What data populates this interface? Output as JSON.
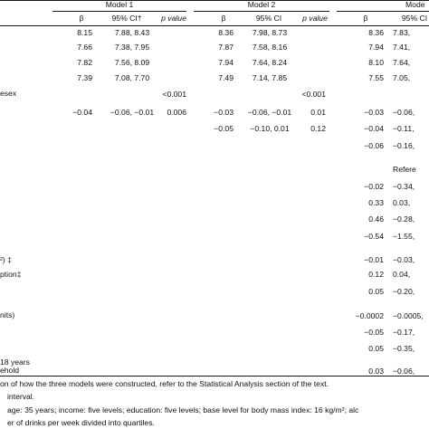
{
  "header": {
    "models": [
      "Model 1",
      "Model 2",
      "Mode"
    ],
    "beta": "β",
    "ci": "95% CI†",
    "ci2": "95% CI",
    "pval": "p value"
  },
  "rows": [
    {
      "label": "",
      "m1": [
        "8.15",
        "7.88, 8.43",
        ""
      ],
      "m2": [
        "8.36",
        "7.98, 8.73",
        ""
      ],
      "m3": [
        "8.36",
        "7.83,"
      ]
    },
    {
      "label": "",
      "m1": [
        "7.66",
        "7.38, 7.95",
        ""
      ],
      "m2": [
        "7.87",
        "7.58, 8.16",
        ""
      ],
      "m3": [
        "7.94",
        "7.41,"
      ]
    },
    {
      "label": "",
      "m1": [
        "7.82",
        "7.56, 8.09",
        ""
      ],
      "m2": [
        "7.94",
        "7.64, 8.24",
        ""
      ],
      "m3": [
        "8.10",
        "7.64,"
      ]
    },
    {
      "label": "",
      "m1": [
        "7.39",
        "7.08, 7.70",
        ""
      ],
      "m2": [
        "7.49",
        "7.14, 7.85",
        ""
      ],
      "m3": [
        "7.55",
        "7.05,"
      ]
    },
    {
      "label": "esex",
      "m1": [
        "",
        "",
        "<0.001"
      ],
      "m2": [
        "",
        "",
        "<0.001"
      ],
      "m3": [
        "",
        ""
      ]
    },
    {
      "label": "",
      "m1": [
        "−0.04",
        "−0.06, −0.01",
        "0.006"
      ],
      "m2": [
        "−0.03",
        "−0.06, −0.01",
        "0.01"
      ],
      "m3": [
        "−0.03",
        "−0.06,"
      ]
    },
    {
      "label": "",
      "m1": [
        "",
        "",
        ""
      ],
      "m2": [
        "−0.05",
        "−0.10, 0.01",
        "0.12"
      ],
      "m3": [
        "−0.04",
        "−0.11,"
      ]
    },
    {
      "label": "",
      "m1": [
        "",
        "",
        ""
      ],
      "m2": [
        "",
        "",
        ""
      ],
      "m3": [
        "−0.06",
        "−0.16,"
      ]
    },
    {
      "label": "",
      "m1": [
        "",
        "",
        ""
      ],
      "m2": [
        "",
        "",
        ""
      ],
      "m3": [
        "",
        "Refere"
      ]
    },
    {
      "label": "",
      "m1": [
        "",
        "",
        ""
      ],
      "m2": [
        "",
        "",
        ""
      ],
      "m3": [
        "−0.02",
        "−0.34,"
      ]
    },
    {
      "label": "",
      "m1": [
        "",
        "",
        ""
      ],
      "m2": [
        "",
        "",
        ""
      ],
      "m3": [
        "0.33",
        "0.03,"
      ]
    },
    {
      "label": "",
      "m1": [
        "",
        "",
        ""
      ],
      "m2": [
        "",
        "",
        ""
      ],
      "m3": [
        "0.46",
        "−0.28,"
      ]
    },
    {
      "label": "",
      "m1": [
        "",
        "",
        ""
      ],
      "m2": [
        "",
        "",
        ""
      ],
      "m3": [
        "−0.54",
        "−1.55,"
      ]
    },
    {
      "label": "²) ‡",
      "m1": [
        "",
        "",
        ""
      ],
      "m2": [
        "",
        "",
        ""
      ],
      "m3": [
        "−0.01",
        "−0.03,"
      ]
    },
    {
      "label": "ption‡",
      "m1": [
        "",
        "",
        ""
      ],
      "m2": [
        "",
        "",
        ""
      ],
      "m3": [
        "0.12",
        "0.04,"
      ]
    },
    {
      "label": "",
      "m1": [
        "",
        "",
        ""
      ],
      "m2": [
        "",
        "",
        ""
      ],
      "m3": [
        "0.05",
        "−0.20,"
      ]
    },
    {
      "label": "nits)",
      "m1": [
        "",
        "",
        ""
      ],
      "m2": [
        "",
        "",
        ""
      ],
      "m3": [
        "−0.0002",
        "−0.0005,"
      ]
    },
    {
      "label": "",
      "m1": [
        "",
        "",
        ""
      ],
      "m2": [
        "",
        "",
        ""
      ],
      "m3": [
        "−0.05",
        "−0.17,"
      ]
    },
    {
      "label": "",
      "m1": [
        "",
        "",
        ""
      ],
      "m2": [
        "",
        "",
        ""
      ],
      "m3": [
        "0.05",
        "−0.35,"
      ]
    },
    {
      "label": "18 years",
      "m1": [
        "",
        "",
        ""
      ],
      "m2": [
        "",
        "",
        ""
      ],
      "m3": [
        "",
        ""
      ]
    },
    {
      "label": "ehold",
      "m1": [
        "",
        "",
        ""
      ],
      "m2": [
        "",
        "",
        ""
      ],
      "m3": [
        "0.03",
        "−0.06,"
      ]
    }
  ],
  "footnotes": [
    "on of how the three models were constructed, refer to the Statistical Analysis section of the text.",
    "interval.",
    "age: 35 years; income: five levels; education: five levels; base level for body mass index: 16 kg/m²; alc",
    "er of drinks per week divided into quartiles."
  ]
}
